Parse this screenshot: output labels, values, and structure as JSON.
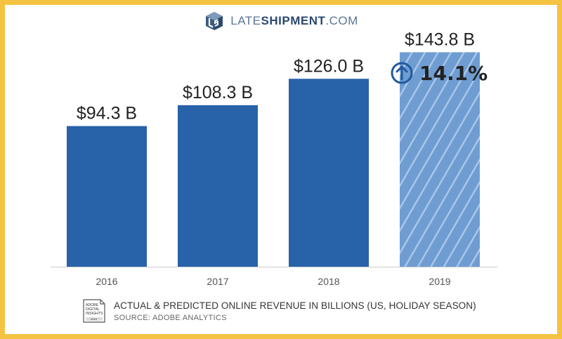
{
  "logo": {
    "late": "LATE",
    "shipment": "SHIPMENT",
    "com": ".COM"
  },
  "badge": {
    "line1": "ADOBE",
    "line2": "DIGITAL",
    "line3": "INSIGHTS",
    "year": "2019"
  },
  "footer": {
    "title": "ACTUAL & PREDICTED ONLINE REVENUE IN BILLIONS (US, HOLIDAY SEASON)",
    "source": "SOURCE: ADOBE ANALYTICS"
  },
  "growth_label": "14.1%",
  "colors": {
    "bar": "#2862a8",
    "predicted": "#6f9dd2",
    "accent": "#1f5a9e",
    "text": "#222222",
    "axis": "#cccccc"
  },
  "chart_data": {
    "type": "bar",
    "categories": [
      "2016",
      "2017",
      "2018",
      "2019"
    ],
    "values": [
      94.3,
      108.3,
      126.0,
      143.8
    ],
    "data_labels": [
      "$94.3 B",
      "$108.3 B",
      "$126.0 B",
      "$143.8 B"
    ],
    "predicted": [
      false,
      false,
      false,
      true
    ],
    "annotation": "14.1%",
    "title": "",
    "xlabel": "",
    "ylabel": "",
    "ylim": [
      0,
      160
    ],
    "grid": false
  }
}
